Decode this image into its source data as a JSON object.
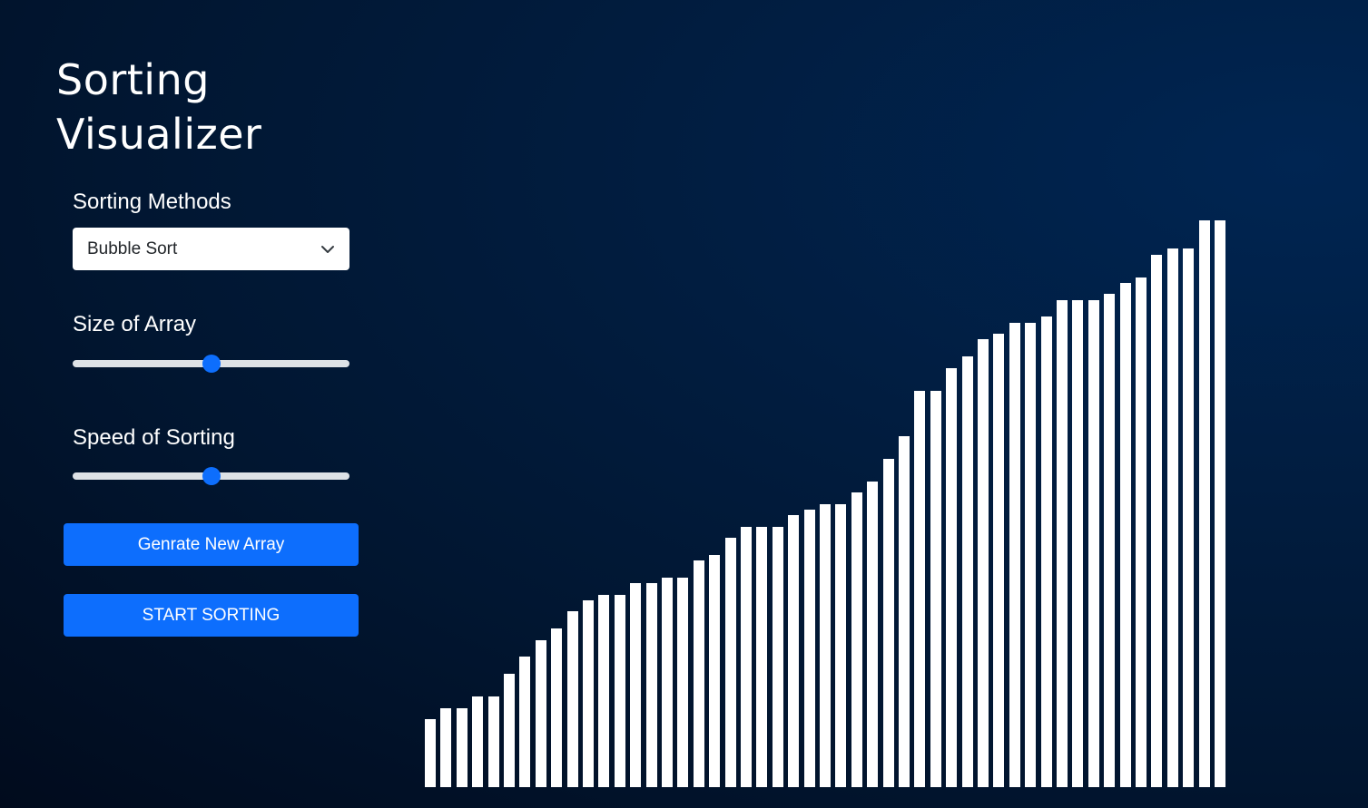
{
  "title": "Sorting Visualizer",
  "controls": {
    "method_label": "Sorting Methods",
    "method_selected": "Bubble Sort",
    "size_label": "Size of Array",
    "size_value_pct": 50,
    "speed_label": "Speed of Sorting",
    "speed_value_pct": 50
  },
  "buttons": {
    "generate": "Genrate New Array",
    "start": "START SORTING"
  },
  "colors": {
    "accent": "#0d6efd",
    "bar": "#ffffff"
  },
  "icons": {
    "select_caret": "chevron-down-icon"
  },
  "array": {
    "max": 50,
    "values": [
      6,
      7,
      7,
      8,
      8,
      10,
      11.5,
      13,
      14,
      15.5,
      16.5,
      17,
      17,
      18,
      18,
      18.5,
      18.5,
      20,
      20.5,
      22,
      23,
      23,
      23,
      24,
      24.5,
      25,
      25,
      26,
      27,
      29,
      31,
      35,
      35,
      37,
      38,
      39.5,
      40,
      41,
      41,
      41.5,
      43,
      43,
      43,
      43.5,
      44.5,
      45,
      47,
      47.5,
      47.5,
      50,
      50
    ]
  }
}
